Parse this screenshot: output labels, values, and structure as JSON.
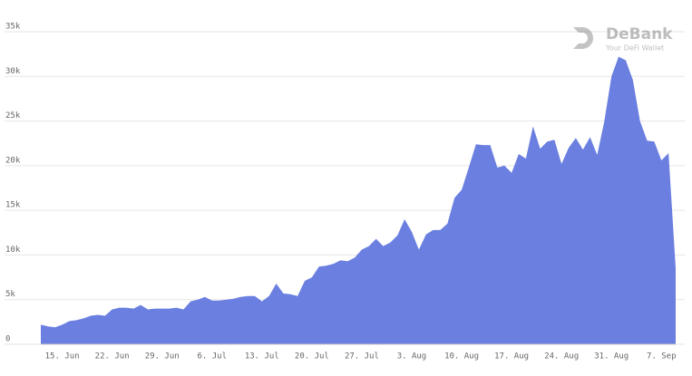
{
  "chart_data": {
    "type": "area",
    "watermark": {
      "title": "DeBank",
      "subtitle": "Your DeFi Wallet"
    },
    "categories": [
      null,
      null,
      null,
      "15. Jun",
      null,
      null,
      null,
      null,
      null,
      null,
      "22. Jun",
      null,
      null,
      null,
      null,
      null,
      null,
      "29. Jun",
      null,
      null,
      null,
      null,
      null,
      null,
      "6. Jul",
      null,
      null,
      null,
      null,
      null,
      null,
      "13. Jul",
      null,
      null,
      null,
      null,
      null,
      null,
      "20. Jul",
      null,
      null,
      null,
      null,
      null,
      null,
      "27. Jul",
      null,
      null,
      null,
      null,
      null,
      null,
      "3. Aug",
      null,
      null,
      null,
      null,
      null,
      null,
      "10. Aug",
      null,
      null,
      null,
      null,
      null,
      null,
      "17. Aug",
      null,
      null,
      null,
      null,
      null,
      null,
      "24. Aug",
      null,
      null,
      null,
      null,
      null,
      null,
      "31. Aug",
      null,
      null,
      null,
      null,
      null,
      null,
      "7. Sep",
      null,
      null
    ],
    "values": [
      2200,
      2000,
      1900,
      2200,
      2600,
      2700,
      2900,
      3200,
      3300,
      3200,
      3900,
      4100,
      4100,
      4000,
      4400,
      3900,
      4000,
      4000,
      4000,
      4100,
      3900,
      4800,
      5000,
      5300,
      4900,
      4900,
      5000,
      5100,
      5300,
      5400,
      5400,
      4800,
      5400,
      6800,
      5700,
      5600,
      5400,
      7100,
      7500,
      8700,
      8800,
      9000,
      9400,
      9300,
      9700,
      10600,
      11000,
      11800,
      11000,
      11400,
      12200,
      14000,
      12600,
      10600,
      12300,
      12800,
      12800,
      13500,
      16400,
      17300,
      19800,
      22400,
      22300,
      22300,
      19800,
      20000,
      19200,
      21300,
      20800,
      24400,
      21900,
      22700,
      22900,
      20200,
      22000,
      23100,
      21800,
      23200,
      21200,
      25000,
      30000,
      32200,
      31800,
      29600,
      25000,
      22800,
      22700,
      20600,
      21400,
      8500
    ],
    "color": "#6a7fe0",
    "ylim": [
      0,
      35000
    ],
    "yticks": [
      0,
      {
        "value": 5000,
        "label": "5k"
      },
      {
        "value": 10000,
        "label": "10k"
      },
      {
        "value": 15000,
        "label": "15k"
      },
      {
        "value": 20000,
        "label": "20k"
      },
      {
        "value": 25000,
        "label": "25k"
      },
      {
        "value": 30000,
        "label": "30k"
      },
      {
        "value": 35000,
        "label": "35k"
      }
    ],
    "grid": true
  }
}
